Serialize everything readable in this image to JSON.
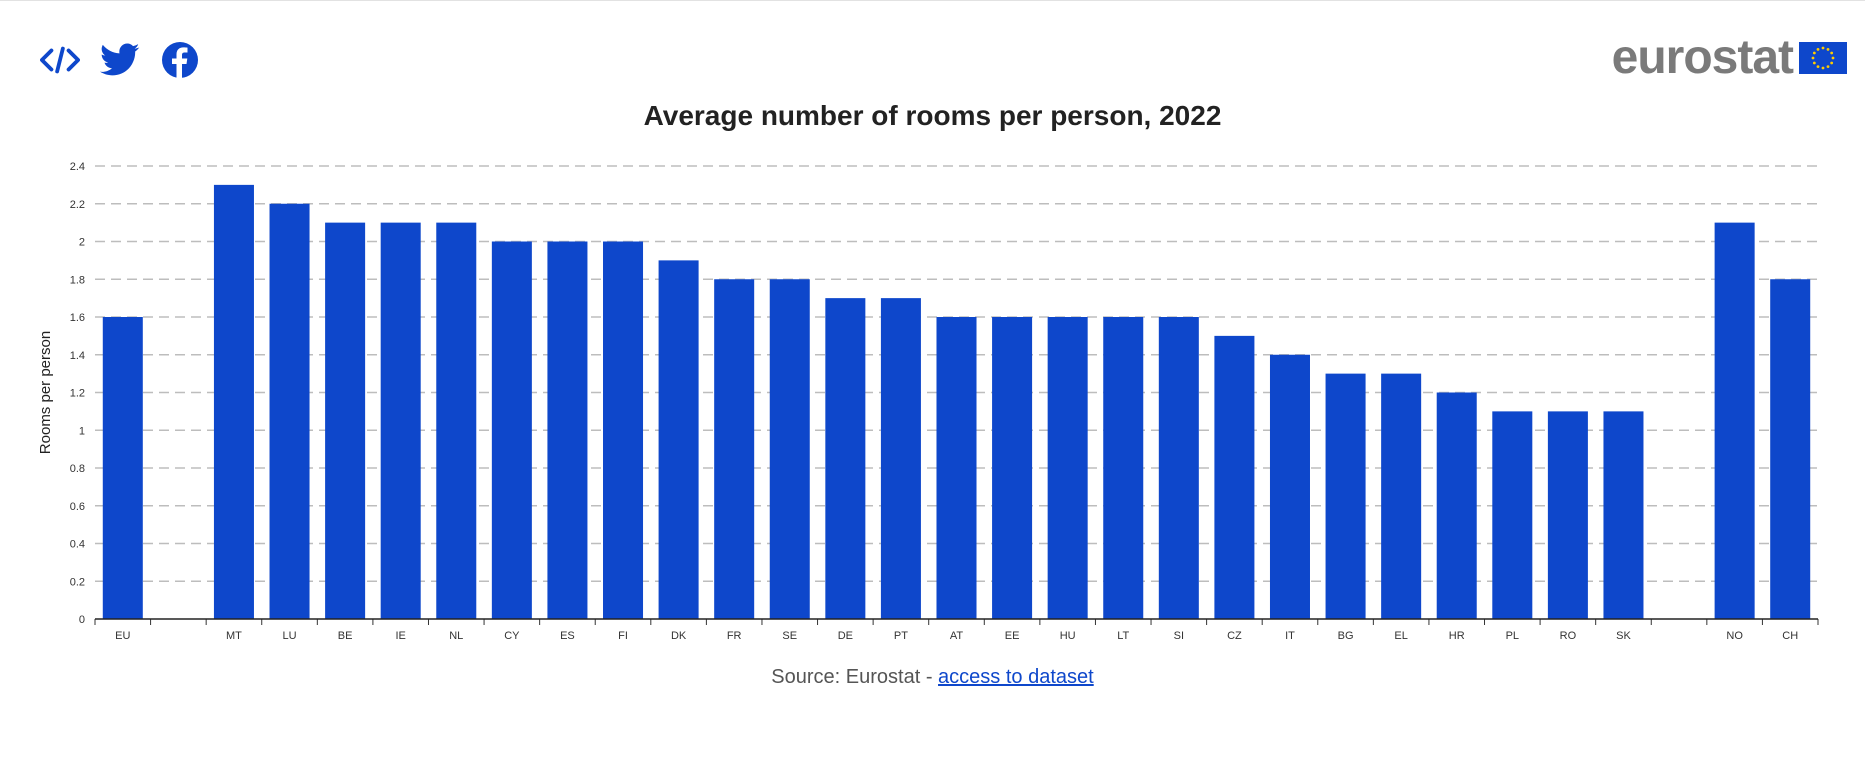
{
  "colors": {
    "bar": "#0e47cb",
    "accent": "#0e47cb",
    "logo_text": "#7a7a7a",
    "grid": "#bdbdbd"
  },
  "header": {
    "icons": [
      "embed-code-icon",
      "twitter-icon",
      "facebook-icon"
    ],
    "logo_text": "eurostat"
  },
  "chart_data": {
    "type": "bar",
    "title": "Average number of rooms per person, 2022",
    "ylabel": "Rooms per person",
    "xlabel": "",
    "ylim": [
      0,
      2.4
    ],
    "yticks": [
      0,
      0.2,
      0.4,
      0.6,
      0.8,
      1,
      1.2,
      1.4,
      1.6,
      1.8,
      2,
      2.2,
      2.4
    ],
    "ytick_labels": [
      "0",
      "0.2",
      "0.4",
      "0.6",
      "0.8",
      "1",
      "1.2",
      "1.4",
      "1.6",
      "1.8",
      "2",
      "2.2",
      "2.4"
    ],
    "grid": true,
    "categories": [
      "EU",
      "",
      "MT",
      "LU",
      "BE",
      "IE",
      "NL",
      "CY",
      "ES",
      "FI",
      "DK",
      "FR",
      "SE",
      "DE",
      "PT",
      "AT",
      "EE",
      "HU",
      "LT",
      "SI",
      "CZ",
      "IT",
      "BG",
      "EL",
      "HR",
      "PL",
      "RO",
      "SK",
      "",
      "NO",
      "CH"
    ],
    "values": [
      1.6,
      null,
      2.3,
      2.2,
      2.1,
      2.1,
      2.1,
      2.0,
      2.0,
      2.0,
      1.9,
      1.8,
      1.8,
      1.7,
      1.7,
      1.6,
      1.6,
      1.6,
      1.6,
      1.6,
      1.5,
      1.4,
      1.3,
      1.3,
      1.2,
      1.1,
      1.1,
      1.1,
      null,
      2.1,
      1.8
    ]
  },
  "footer": {
    "source_prefix": "Source: Eurostat - ",
    "source_link": "access to dataset"
  }
}
